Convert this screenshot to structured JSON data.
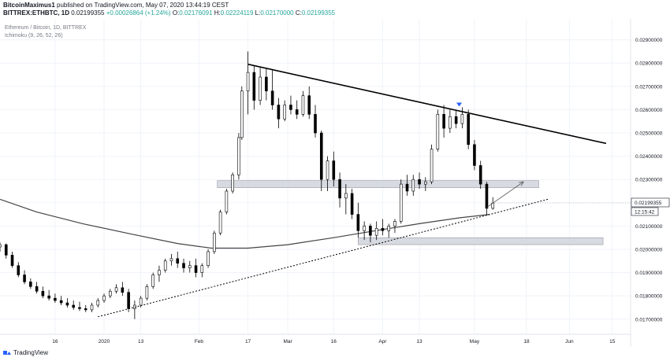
{
  "header": {
    "author": "BitcoinMaximus1",
    "published": "published on TradingView.com, May 07, 2020 13:44:19 CEST",
    "symbol": "BITTREX:ETHBTC, 1D",
    "ohlc_text": "0.02199355",
    "change_text": "+0.00026864 (+1.24%)",
    "o_label": "O:",
    "o_value": "0.02176091",
    "h_label": "H:",
    "h_value": "0.02224119",
    "l_label": "L:",
    "l_value": "0.02170000",
    "c_label": "C:",
    "c_value": "0.02199355"
  },
  "legend": {
    "title": "Ethereum / Bitcoin, 1D, BITTREX",
    "indicator": "Ichimoku (9, 26, 52, 26)"
  },
  "footer": {
    "brand": "TradingView"
  },
  "colors": {
    "up": "#ffffff",
    "down": "#000000",
    "wick": "#000000",
    "trendline": "#000000",
    "ma": "#444444",
    "zone": "#d1d4dc",
    "marker": "#2962ff",
    "grid": "#f0f3fa"
  },
  "chart_data": {
    "type": "candlestick",
    "price_axis_ticks": [
      "0.02900000",
      "0.02800000",
      "0.02700000",
      "0.02600000",
      "0.02500000",
      "0.02400000",
      "0.02300000",
      "0.02200000",
      "0.02100000",
      "0.02000000",
      "0.01900000",
      "0.01800000",
      "0.01700000"
    ],
    "ylim": [
      0.01635,
      0.0299
    ],
    "time_axis_ticks": [
      "16",
      "2020",
      "13",
      "Feb",
      "17",
      "Mar",
      "16",
      "Apr",
      "13",
      "May",
      "18",
      "Jun",
      "15"
    ],
    "time_axis_dates": [
      "2019-12-16",
      "2020-01-01",
      "2020-01-13",
      "2020-02-01",
      "2020-02-17",
      "2020-03-01",
      "2020-03-16",
      "2020-04-01",
      "2020-04-13",
      "2020-05-01",
      "2020-05-18",
      "2020-06-01",
      "2020-06-15"
    ],
    "last_price": "0.02199355",
    "countdown": "12:15:42",
    "resistance_line": {
      "from": [
        "2020-02-17",
        0.02795
      ],
      "to": [
        "2020-06-13",
        0.02455
      ]
    },
    "support_line": {
      "from": [
        "2019-12-30",
        0.0171
      ],
      "to": [
        "2020-05-25",
        0.02215
      ]
    },
    "zones": [
      {
        "from": "2020-02-07",
        "to": "2020-05-22",
        "top": 0.02295,
        "bottom": 0.02265
      },
      {
        "from": "2020-03-24",
        "to": "2020-06-12",
        "top": 0.0205,
        "bottom": 0.0202
      }
    ],
    "projection_arrow": {
      "from": [
        "2020-05-05",
        0.0218
      ],
      "to": [
        "2020-05-17",
        0.0229
      ]
    },
    "marker": {
      "date": "2020-04-26",
      "price": 0.0262,
      "shape": "triangle-down"
    },
    "ma_series": {
      "dates": [
        "2019-11-28",
        "2019-12-10",
        "2019-12-25",
        "2020-01-10",
        "2020-01-25",
        "2020-02-05",
        "2020-02-17",
        "2020-03-01",
        "2020-03-16",
        "2020-04-01",
        "2020-04-13",
        "2020-04-26",
        "2020-05-06"
      ],
      "values": [
        0.02215,
        0.0216,
        0.0211,
        0.02065,
        0.02025,
        0.02005,
        0.02005,
        0.0202,
        0.0205,
        0.02085,
        0.0211,
        0.02135,
        0.0215
      ]
    },
    "candles": [
      [
        "2019-11-28",
        0.0201,
        0.0203,
        0.0199,
        0.0202
      ],
      [
        "2019-11-30",
        0.0202,
        0.02025,
        0.0196,
        0.01975
      ],
      [
        "2019-12-02",
        0.01975,
        0.0199,
        0.0192,
        0.0193
      ],
      [
        "2019-12-04",
        0.0193,
        0.01945,
        0.0188,
        0.0189
      ],
      [
        "2019-12-06",
        0.0189,
        0.0191,
        0.0185,
        0.0186
      ],
      [
        "2019-12-08",
        0.0186,
        0.01875,
        0.0183,
        0.0184
      ],
      [
        "2019-12-10",
        0.0184,
        0.0186,
        0.0181,
        0.0182
      ],
      [
        "2019-12-12",
        0.0182,
        0.0184,
        0.0179,
        0.018
      ],
      [
        "2019-12-14",
        0.018,
        0.01825,
        0.0178,
        0.0179
      ],
      [
        "2019-12-16",
        0.0179,
        0.0181,
        0.0177,
        0.0178
      ],
      [
        "2019-12-18",
        0.0178,
        0.018,
        0.0176,
        0.0177
      ],
      [
        "2019-12-20",
        0.0177,
        0.0179,
        0.0175,
        0.0176
      ],
      [
        "2019-12-22",
        0.0176,
        0.0178,
        0.0174,
        0.0175
      ],
      [
        "2019-12-24",
        0.0175,
        0.01775,
        0.01735,
        0.01745
      ],
      [
        "2019-12-26",
        0.01745,
        0.0176,
        0.0173,
        0.0174
      ],
      [
        "2019-12-28",
        0.0174,
        0.0177,
        0.0173,
        0.0176
      ],
      [
        "2019-12-30",
        0.0176,
        0.0179,
        0.0175,
        0.0178
      ],
      [
        "2020-01-01",
        0.0178,
        0.0181,
        0.0177,
        0.018
      ],
      [
        "2020-01-03",
        0.018,
        0.0183,
        0.0179,
        0.0182
      ],
      [
        "2020-01-05",
        0.0182,
        0.0185,
        0.0181,
        0.01835
      ],
      [
        "2020-01-07",
        0.01835,
        0.0186,
        0.018,
        0.01815
      ],
      [
        "2020-01-09",
        0.01815,
        0.0183,
        0.0173,
        0.01745
      ],
      [
        "2020-01-11",
        0.01745,
        0.0178,
        0.017,
        0.0176
      ],
      [
        "2020-01-13",
        0.0176,
        0.018,
        0.0175,
        0.0179
      ],
      [
        "2020-01-15",
        0.0179,
        0.0185,
        0.0178,
        0.0184
      ],
      [
        "2020-01-17",
        0.0184,
        0.019,
        0.0183,
        0.0189
      ],
      [
        "2020-01-19",
        0.0189,
        0.0193,
        0.0186,
        0.0191
      ],
      [
        "2020-01-21",
        0.0191,
        0.0196,
        0.019,
        0.0195
      ],
      [
        "2020-01-23",
        0.0195,
        0.0198,
        0.0193,
        0.0196
      ],
      [
        "2020-01-25",
        0.0196,
        0.0199,
        0.0192,
        0.0194
      ],
      [
        "2020-01-27",
        0.0194,
        0.0196,
        0.019,
        0.0192
      ],
      [
        "2020-01-29",
        0.0192,
        0.0195,
        0.019,
        0.0193
      ],
      [
        "2020-01-31",
        0.0193,
        0.0196,
        0.0188,
        0.019
      ],
      [
        "2020-02-02",
        0.019,
        0.0194,
        0.0188,
        0.0193
      ],
      [
        "2020-02-04",
        0.0193,
        0.02,
        0.0192,
        0.0199
      ],
      [
        "2020-02-06",
        0.0199,
        0.0208,
        0.0198,
        0.0207
      ],
      [
        "2020-02-08",
        0.0207,
        0.0217,
        0.0206,
        0.0216
      ],
      [
        "2020-02-10",
        0.0216,
        0.0226,
        0.0215,
        0.0225
      ],
      [
        "2020-02-12",
        0.0225,
        0.0233,
        0.0224,
        0.0232
      ],
      [
        "2020-02-14",
        0.0232,
        0.025,
        0.023,
        0.0248
      ],
      [
        "2020-02-15",
        0.0248,
        0.027,
        0.0247,
        0.0268
      ],
      [
        "2020-02-17",
        0.0268,
        0.0285,
        0.0258,
        0.0276
      ],
      [
        "2020-02-19",
        0.0276,
        0.0279,
        0.026,
        0.0264
      ],
      [
        "2020-02-21",
        0.0264,
        0.0278,
        0.0262,
        0.0274
      ],
      [
        "2020-02-23",
        0.0274,
        0.0278,
        0.0264,
        0.0268
      ],
      [
        "2020-02-25",
        0.0268,
        0.0277,
        0.026,
        0.0262
      ],
      [
        "2020-02-27",
        0.0262,
        0.0265,
        0.0252,
        0.0256
      ],
      [
        "2020-02-29",
        0.0256,
        0.0264,
        0.0255,
        0.0262
      ],
      [
        "2020-03-02",
        0.0262,
        0.0266,
        0.0258,
        0.026
      ],
      [
        "2020-03-04",
        0.026,
        0.0264,
        0.0256,
        0.0258
      ],
      [
        "2020-03-06",
        0.0258,
        0.0268,
        0.0257,
        0.0266
      ],
      [
        "2020-03-08",
        0.0266,
        0.027,
        0.0256,
        0.0258
      ],
      [
        "2020-03-10",
        0.0258,
        0.0262,
        0.0248,
        0.025
      ],
      [
        "2020-03-12",
        0.025,
        0.0251,
        0.0225,
        0.023
      ],
      [
        "2020-03-14",
        0.023,
        0.024,
        0.0225,
        0.0238
      ],
      [
        "2020-03-16",
        0.0238,
        0.0242,
        0.0227,
        0.023
      ],
      [
        "2020-03-18",
        0.023,
        0.0233,
        0.0218,
        0.0222
      ],
      [
        "2020-03-20",
        0.0222,
        0.0228,
        0.0215,
        0.0224
      ],
      [
        "2020-03-22",
        0.0224,
        0.0226,
        0.0213,
        0.0215
      ],
      [
        "2020-03-24",
        0.0215,
        0.022,
        0.0205,
        0.0208
      ],
      [
        "2020-03-26",
        0.0208,
        0.0212,
        0.0204,
        0.021
      ],
      [
        "2020-03-28",
        0.021,
        0.0211,
        0.0203,
        0.0206
      ],
      [
        "2020-03-30",
        0.0206,
        0.0212,
        0.0204,
        0.0209
      ],
      [
        "2020-04-01",
        0.0209,
        0.0213,
        0.0206,
        0.0208
      ],
      [
        "2020-04-03",
        0.0208,
        0.0211,
        0.0205,
        0.021
      ],
      [
        "2020-04-05",
        0.021,
        0.0213,
        0.0207,
        0.0212
      ],
      [
        "2020-04-07",
        0.0212,
        0.023,
        0.0211,
        0.0228
      ],
      [
        "2020-04-09",
        0.0228,
        0.0232,
        0.0223,
        0.0225
      ],
      [
        "2020-04-11",
        0.0225,
        0.0232,
        0.0223,
        0.023
      ],
      [
        "2020-04-13",
        0.023,
        0.0233,
        0.0226,
        0.0228
      ],
      [
        "2020-04-15",
        0.0228,
        0.0231,
        0.0225,
        0.0229
      ],
      [
        "2020-04-17",
        0.0229,
        0.0245,
        0.0228,
        0.0243
      ],
      [
        "2020-04-19",
        0.0243,
        0.026,
        0.0242,
        0.0258
      ],
      [
        "2020-04-21",
        0.0258,
        0.0262,
        0.0248,
        0.0252
      ],
      [
        "2020-04-23",
        0.0252,
        0.026,
        0.025,
        0.0257
      ],
      [
        "2020-04-25",
        0.0257,
        0.026,
        0.0252,
        0.0254
      ],
      [
        "2020-04-27",
        0.0254,
        0.0261,
        0.0252,
        0.0258
      ],
      [
        "2020-04-29",
        0.0258,
        0.026,
        0.0243,
        0.0245
      ],
      [
        "2020-05-01",
        0.0245,
        0.0247,
        0.0234,
        0.0236
      ],
      [
        "2020-05-03",
        0.0236,
        0.0238,
        0.0226,
        0.0228
      ],
      [
        "2020-05-05",
        0.0228,
        0.0229,
        0.0215,
        0.02176
      ],
      [
        "2020-05-07",
        0.02176,
        0.02224,
        0.0217,
        0.02199
      ]
    ]
  }
}
